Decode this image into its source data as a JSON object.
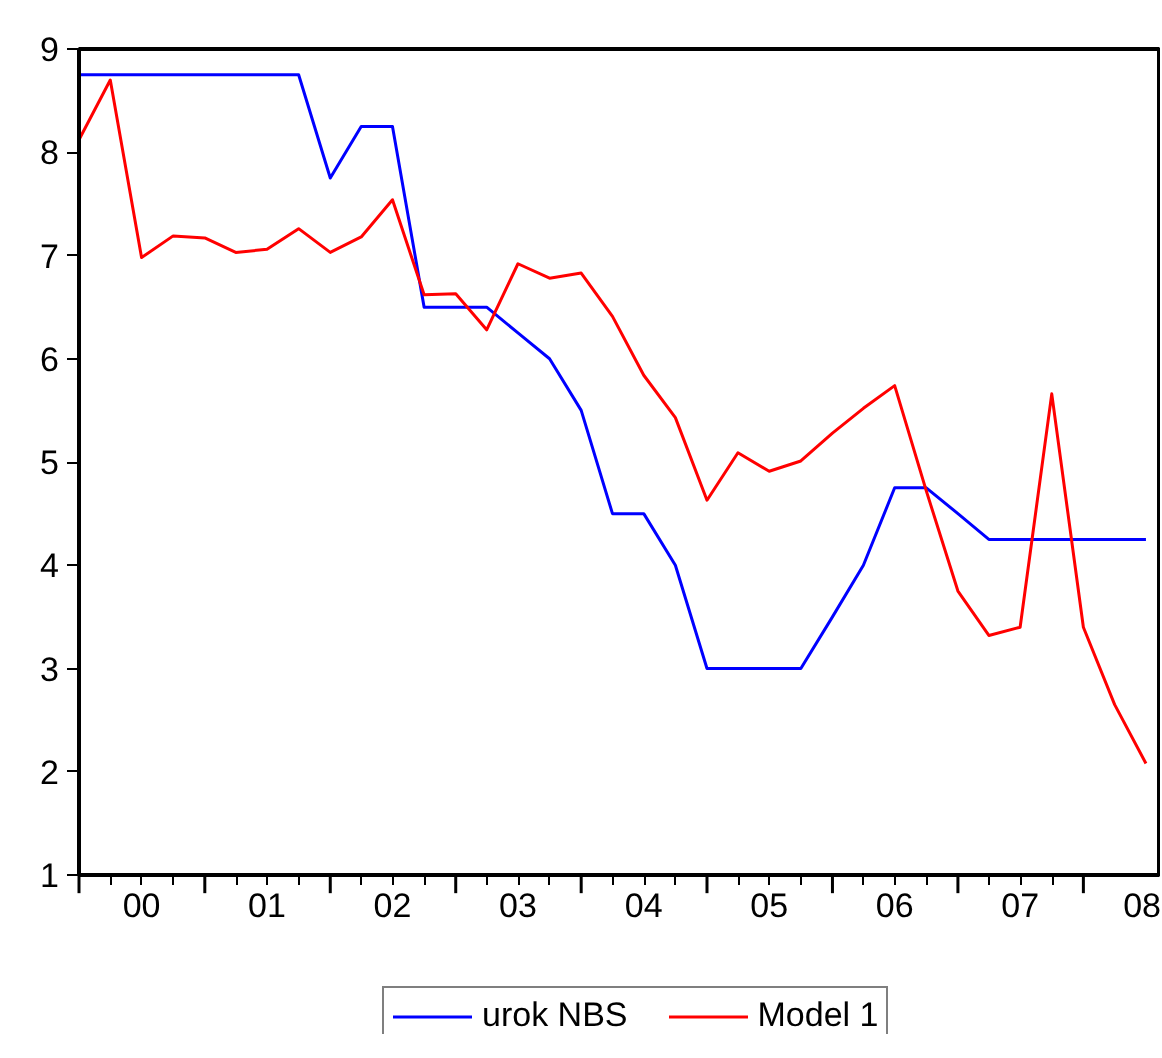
{
  "chart_data": {
    "type": "line",
    "x": [
      "2000-01",
      "2000-04",
      "2000-07",
      "2000-10",
      "2001-01",
      "2001-04",
      "2001-07",
      "2001-10",
      "2002-01",
      "2002-04",
      "2002-07",
      "2002-10",
      "2003-01",
      "2003-04",
      "2003-07",
      "2003-10",
      "2004-01",
      "2004-04",
      "2004-07",
      "2004-10",
      "2005-01",
      "2005-04",
      "2005-07",
      "2005-10",
      "2006-01",
      "2006-04",
      "2006-07",
      "2006-10",
      "2007-01",
      "2007-04",
      "2007-07",
      "2007-10",
      "2008-01",
      "2008-04",
      "2008-07"
    ],
    "series": [
      {
        "name": "urok NBS",
        "color": "#0000ff",
        "values": [
          8.75,
          8.75,
          8.75,
          8.75,
          8.75,
          8.75,
          8.75,
          8.75,
          7.75,
          8.25,
          8.25,
          6.5,
          6.5,
          6.5,
          6.25,
          6.0,
          5.5,
          4.5,
          4.5,
          4.0,
          3.0,
          3.0,
          3.0,
          3.0,
          3.5,
          4.0,
          4.75,
          4.75,
          4.5,
          4.25,
          4.25,
          4.25,
          4.25,
          4.25,
          4.25
        ]
      },
      {
        "name": "Model 1",
        "color": "#ff0000",
        "values": [
          8.12,
          8.7,
          6.98,
          7.19,
          7.17,
          7.03,
          7.06,
          7.26,
          7.03,
          7.18,
          7.54,
          6.62,
          6.63,
          6.28,
          6.92,
          6.78,
          6.83,
          6.41,
          5.84,
          5.43,
          4.63,
          5.09,
          4.91,
          5.01,
          5.28,
          5.52,
          5.74,
          4.72,
          3.75,
          3.32,
          3.4,
          5.66,
          3.4,
          2.65,
          2.08
        ]
      }
    ],
    "xlim": [
      "2000-01",
      "2008-08-08"
    ],
    "xticks": [
      {
        "value": "2000-01",
        "label": null
      },
      {
        "value": "2000-07",
        "label": "00"
      },
      {
        "value": "2001-01",
        "label": null
      },
      {
        "value": "2001-07",
        "label": "01"
      },
      {
        "value": "2002-01",
        "label": null
      },
      {
        "value": "2002-07",
        "label": "02"
      },
      {
        "value": "2003-01",
        "label": null
      },
      {
        "value": "2003-07",
        "label": "03"
      },
      {
        "value": "2004-01",
        "label": null
      },
      {
        "value": "2004-07",
        "label": "04"
      },
      {
        "value": "2005-01",
        "label": null
      },
      {
        "value": "2005-07",
        "label": "05"
      },
      {
        "value": "2006-01",
        "label": null
      },
      {
        "value": "2006-07",
        "label": "06"
      },
      {
        "value": "2007-01",
        "label": null
      },
      {
        "value": "2007-07",
        "label": "07"
      },
      {
        "value": "2008-01",
        "label": null
      },
      {
        "value": "2008-07",
        "label": "08"
      }
    ],
    "ylim": [
      1,
      9
    ],
    "yticks": [
      1,
      2,
      3,
      4,
      5,
      6,
      7,
      8,
      9
    ],
    "legend": "bottom",
    "line_style": "solid"
  }
}
